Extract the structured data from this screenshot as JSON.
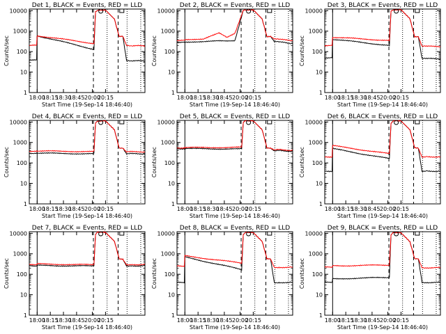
{
  "chart_data": [
    {
      "type": "line",
      "title": "Det 1, BLACK = Events, RED = LLD",
      "xlabel": "Start Time (19-Sep-14 18:46:40)",
      "ylabel": "Counts/sec",
      "x_ticks": [
        "18:00",
        "18:15",
        "18:30",
        "18:45",
        "20:00",
        "20:15"
      ],
      "y_ticks": [
        "1",
        "10",
        "100",
        "1000",
        "10000"
      ],
      "ylim": [
        1,
        12000
      ],
      "yscale": "log",
      "grid": false,
      "series": [
        {
          "name": "BLACK",
          "color": "#000000",
          "x": [
            0,
            1.4,
            1.5,
            12.3,
            12.6,
            13,
            14.5,
            16.2,
            17.1,
            17.8,
            18.5,
            19.4,
            21.2,
            22
          ],
          "y": [
            38,
            38,
            600,
            130,
            9000,
            11000,
            11000,
            4000,
            550,
            550,
            35,
            35,
            35,
            35
          ]
        },
        {
          "name": "RED",
          "color": "#ff0000",
          "x": [
            0,
            1.4,
            1.5,
            12.3,
            12.6,
            13,
            14.5,
            16.2,
            17.1,
            17.8,
            18.5,
            19.4,
            21.2,
            22
          ],
          "y": [
            200,
            200,
            600,
            250,
            9000,
            11000,
            11000,
            4000,
            550,
            550,
            190,
            190,
            190,
            190
          ]
        }
      ]
    },
    {
      "type": "line",
      "title": "Det 2, BLACK = Events, RED = LLD",
      "xlabel": "Start Time (19-Sep-14 18:46:40)",
      "ylabel": "Counts/sec",
      "x_ticks": [
        "18:00",
        "18:15",
        "18:30",
        "18:45",
        "20:00",
        "20:15"
      ],
      "y_ticks": [
        "1",
        "10",
        "100",
        "1000",
        "10000"
      ],
      "ylim": [
        1,
        12000
      ],
      "yscale": "log",
      "grid": false,
      "series": [
        {
          "name": "BLACK",
          "color": "#000000",
          "x": [
            0,
            1.4,
            1.5,
            5,
            8,
            9.5,
            11,
            12.6,
            13,
            14.5,
            16.2,
            17.1,
            17.8,
            18.5,
            19.4,
            21.2,
            22
          ],
          "y": [
            280,
            280,
            300,
            300,
            330,
            330,
            350,
            10000,
            11000,
            11000,
            4000,
            550,
            550,
            300,
            300,
            250,
            250
          ]
        },
        {
          "name": "RED",
          "color": "#ff0000",
          "x": [
            0,
            1.4,
            1.5,
            5,
            8,
            9.5,
            11,
            12.6,
            13,
            14.5,
            16.2,
            17.1,
            17.8,
            18.5,
            19.4,
            21.2,
            22
          ],
          "y": [
            350,
            350,
            400,
            400,
            800,
            500,
            800,
            10000,
            11000,
            11000,
            4000,
            550,
            550,
            400,
            400,
            350,
            350
          ]
        }
      ]
    },
    {
      "type": "line",
      "title": "Det 3, BLACK = Events, RED = LLD",
      "xlabel": "Start Time (19-Sep-14 18:46:40)",
      "ylabel": "Counts/sec",
      "x_ticks": [
        "18:00",
        "18:15",
        "18:30",
        "18:45",
        "20:00",
        "20:15"
      ],
      "y_ticks": [
        "1",
        "10",
        "100",
        "1000",
        "10000"
      ],
      "ylim": [
        1,
        12000
      ],
      "yscale": "log",
      "grid": false,
      "series": [
        {
          "name": "BLACK",
          "color": "#000000",
          "x": [
            0,
            1.4,
            1.5,
            12.3,
            12.6,
            13,
            14.5,
            16.2,
            17.1,
            17.8,
            18.5,
            19.4,
            21.2,
            22
          ],
          "y": [
            50,
            50,
            400,
            200,
            9000,
            11000,
            11000,
            4000,
            550,
            550,
            45,
            45,
            45,
            45
          ]
        },
        {
          "name": "RED",
          "color": "#ff0000",
          "x": [
            0,
            1.4,
            1.5,
            12.3,
            12.6,
            13,
            14.5,
            16.2,
            17.1,
            17.8,
            18.5,
            19.4,
            21.2,
            22
          ],
          "y": [
            200,
            200,
            500,
            350,
            9000,
            11000,
            11000,
            4000,
            550,
            550,
            180,
            180,
            180,
            180
          ]
        }
      ]
    },
    {
      "type": "line",
      "title": "Det 4, BLACK = Events, RED = LLD",
      "xlabel": "Start Time (19-Sep-14 18:46:40)",
      "ylabel": "Counts/sec",
      "x_ticks": [
        "18:00",
        "18:15",
        "18:30",
        "18:45",
        "20:00",
        "20:15"
      ],
      "y_ticks": [
        "1",
        "10",
        "100",
        "1000",
        "10000"
      ],
      "ylim": [
        1,
        12000
      ],
      "yscale": "log",
      "grid": false,
      "series": [
        {
          "name": "BLACK",
          "color": "#000000",
          "x": [
            0,
            1.4,
            1.5,
            12.3,
            12.6,
            13,
            14.5,
            16.2,
            17.1,
            17.8,
            18.5,
            19.4,
            21.2,
            22
          ],
          "y": [
            300,
            300,
            300,
            280,
            9000,
            11000,
            11000,
            4000,
            550,
            550,
            280,
            280,
            280,
            280
          ]
        },
        {
          "name": "RED",
          "color": "#ff0000",
          "x": [
            0,
            1.4,
            1.5,
            12.3,
            12.6,
            13,
            14.5,
            16.2,
            17.1,
            17.8,
            18.5,
            19.4,
            21.2,
            22
          ],
          "y": [
            380,
            380,
            380,
            360,
            9000,
            11000,
            11000,
            4000,
            550,
            550,
            350,
            350,
            350,
            350
          ]
        }
      ]
    },
    {
      "type": "line",
      "title": "Det 5, BLACK = Events, RED = LLD",
      "xlabel": "Start Time (19-Sep-14 18:46:40)",
      "ylabel": "Counts/sec",
      "x_ticks": [
        "18:00",
        "18:15",
        "18:30",
        "18:45",
        "20:00",
        "20:15"
      ],
      "y_ticks": [
        "1",
        "10",
        "100",
        "1000",
        "10000"
      ],
      "ylim": [
        1,
        12000
      ],
      "yscale": "log",
      "grid": false,
      "series": [
        {
          "name": "BLACK",
          "color": "#000000",
          "x": [
            0,
            1.4,
            1.5,
            12.3,
            12.6,
            13,
            14.5,
            16.2,
            17.1,
            17.8,
            18.5,
            19.4,
            21.2,
            22
          ],
          "y": [
            500,
            500,
            500,
            480,
            9000,
            11000,
            11000,
            4000,
            550,
            550,
            400,
            400,
            380,
            380
          ]
        },
        {
          "name": "RED",
          "color": "#ff0000",
          "x": [
            0,
            1.4,
            1.5,
            12.3,
            12.6,
            13,
            14.5,
            16.2,
            17.1,
            17.8,
            18.5,
            19.4,
            21.2,
            22
          ],
          "y": [
            550,
            550,
            560,
            580,
            9000,
            11000,
            11000,
            4000,
            550,
            550,
            450,
            450,
            420,
            420
          ]
        }
      ]
    },
    {
      "type": "line",
      "title": "Det 6, BLACK = Events, RED = LLD",
      "xlabel": "Start Time (19-Sep-14 18:46:40)",
      "ylabel": "Counts/sec",
      "x_ticks": [
        "18:00",
        "18:15",
        "18:30",
        "18:45",
        "20:00",
        "20:15"
      ],
      "y_ticks": [
        "1",
        "10",
        "100",
        "1000",
        "10000"
      ],
      "ylim": [
        1,
        12000
      ],
      "yscale": "log",
      "grid": false,
      "series": [
        {
          "name": "BLACK",
          "color": "#000000",
          "x": [
            0,
            1.4,
            1.5,
            12.3,
            12.6,
            13,
            14.5,
            16.2,
            17.1,
            17.8,
            18.5,
            19.4,
            21.2,
            22
          ],
          "y": [
            40,
            40,
            500,
            160,
            9000,
            11000,
            11000,
            4000,
            550,
            550,
            40,
            40,
            40,
            40
          ]
        },
        {
          "name": "RED",
          "color": "#ff0000",
          "x": [
            0,
            1.4,
            1.5,
            12.3,
            12.6,
            13,
            14.5,
            16.2,
            17.1,
            17.8,
            18.5,
            19.4,
            21.2,
            22
          ],
          "y": [
            200,
            200,
            700,
            280,
            9000,
            11000,
            11000,
            4000,
            550,
            550,
            200,
            200,
            200,
            200
          ]
        }
      ]
    },
    {
      "type": "line",
      "title": "Det 7, BLACK = Events, RED = LLD",
      "xlabel": "Start Time (19-Sep-14 18:46:40)",
      "ylabel": "Counts/sec",
      "x_ticks": [
        "18:00",
        "18:15",
        "18:30",
        "18:45",
        "20:00",
        "20:15"
      ],
      "y_ticks": [
        "1",
        "10",
        "100",
        "1000",
        "10000"
      ],
      "ylim": [
        1,
        12000
      ],
      "yscale": "log",
      "grid": false,
      "series": [
        {
          "name": "BLACK",
          "color": "#000000",
          "x": [
            0,
            1.4,
            1.5,
            12.3,
            12.6,
            13,
            14.5,
            16.2,
            17.1,
            17.8,
            18.5,
            19.4,
            21.2,
            22
          ],
          "y": [
            260,
            260,
            270,
            250,
            9000,
            11000,
            11000,
            4000,
            550,
            550,
            260,
            260,
            260,
            260
          ]
        },
        {
          "name": "RED",
          "color": "#ff0000",
          "x": [
            0,
            1.4,
            1.5,
            12.3,
            12.6,
            13,
            14.5,
            16.2,
            17.1,
            17.8,
            18.5,
            19.4,
            21.2,
            22
          ],
          "y": [
            300,
            300,
            320,
            290,
            9000,
            11000,
            11000,
            4000,
            550,
            550,
            300,
            300,
            300,
            300
          ]
        }
      ]
    },
    {
      "type": "line",
      "title": "Det 8, BLACK = Events, RED = LLD",
      "xlabel": "Start Time (19-Sep-14 18:46:40)",
      "ylabel": "Counts/sec",
      "x_ticks": [
        "18:00",
        "18:15",
        "18:30",
        "18:45",
        "20:00",
        "20:15"
      ],
      "y_ticks": [
        "1",
        "10",
        "100",
        "1000",
        "10000"
      ],
      "ylim": [
        1,
        12000
      ],
      "yscale": "log",
      "grid": false,
      "series": [
        {
          "name": "BLACK",
          "color": "#000000",
          "x": [
            0,
            1.4,
            1.5,
            12.3,
            12.6,
            13,
            14.5,
            16.2,
            17.1,
            17.8,
            18.5,
            19.4,
            21.2,
            22
          ],
          "y": [
            40,
            40,
            700,
            170,
            9000,
            11000,
            11000,
            4000,
            550,
            550,
            40,
            40,
            40,
            40
          ]
        },
        {
          "name": "RED",
          "color": "#ff0000",
          "x": [
            0,
            1.4,
            1.5,
            12.3,
            12.6,
            13,
            14.5,
            16.2,
            17.1,
            17.8,
            18.5,
            19.4,
            21.2,
            22
          ],
          "y": [
            250,
            250,
            800,
            350,
            9000,
            11000,
            11000,
            4000,
            550,
            550,
            220,
            220,
            220,
            220
          ]
        }
      ]
    },
    {
      "type": "line",
      "title": "Det 9, BLACK = Events, RED = LLD",
      "xlabel": "Start Time (19-Sep-14 18:46:40)",
      "ylabel": "Counts/sec",
      "x_ticks": [
        "18:00",
        "18:15",
        "18:30",
        "18:45",
        "20:00",
        "20:15"
      ],
      "y_ticks": [
        "1",
        "10",
        "100",
        "1000",
        "10000"
      ],
      "ylim": [
        1,
        12000
      ],
      "yscale": "log",
      "grid": false,
      "series": [
        {
          "name": "BLACK",
          "color": "#000000",
          "x": [
            0,
            1.4,
            1.5,
            12.3,
            12.6,
            13,
            14.5,
            16.2,
            17.1,
            17.8,
            18.5,
            19.4,
            21.2,
            22
          ],
          "y": [
            40,
            40,
            60,
            70,
            9000,
            11000,
            11000,
            4000,
            550,
            550,
            40,
            40,
            40,
            40
          ]
        },
        {
          "name": "RED",
          "color": "#ff0000",
          "x": [
            0,
            1.4,
            1.5,
            12.3,
            12.6,
            13,
            14.5,
            16.2,
            17.1,
            17.8,
            18.5,
            19.4,
            21.2,
            22
          ],
          "y": [
            220,
            220,
            260,
            280,
            9000,
            11000,
            11000,
            4000,
            550,
            550,
            210,
            210,
            210,
            210
          ]
        }
      ]
    }
  ]
}
